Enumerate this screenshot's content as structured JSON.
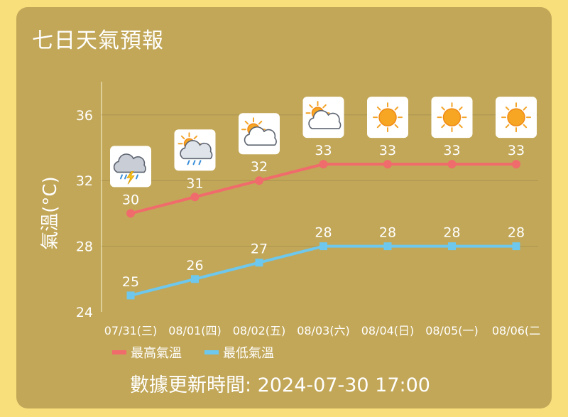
{
  "title": "七日天氣預報",
  "footer": "數據更新時間: 2024-07-30 17:00",
  "chart_data": {
    "type": "line",
    "title": "七日天氣預報",
    "ylabel": "氣溫(°C)",
    "xlabel": "",
    "ylim": [
      24,
      38
    ],
    "yticks": [
      24,
      28,
      32,
      36
    ],
    "grid": true,
    "legend_position": "bottom-left",
    "categories": [
      "07/31(三)",
      "08/01(四)",
      "08/02(五)",
      "08/03(六)",
      "08/04(日)",
      "08/05(一)",
      "08/06(二"
    ],
    "weather_icons": [
      "thunder-rain-icon",
      "partly-cloudy-rain-icon",
      "partly-cloudy-icon",
      "partly-cloudy-icon",
      "sunny-icon",
      "sunny-icon",
      "sunny-icon"
    ],
    "series": [
      {
        "name": "最高氣溫",
        "color": "#f06b6b",
        "values": [
          30,
          31,
          32,
          33,
          33,
          33,
          33
        ]
      },
      {
        "name": "最低氣溫",
        "color": "#6ec7ec",
        "values": [
          25,
          26,
          27,
          28,
          28,
          28,
          28
        ]
      }
    ]
  }
}
